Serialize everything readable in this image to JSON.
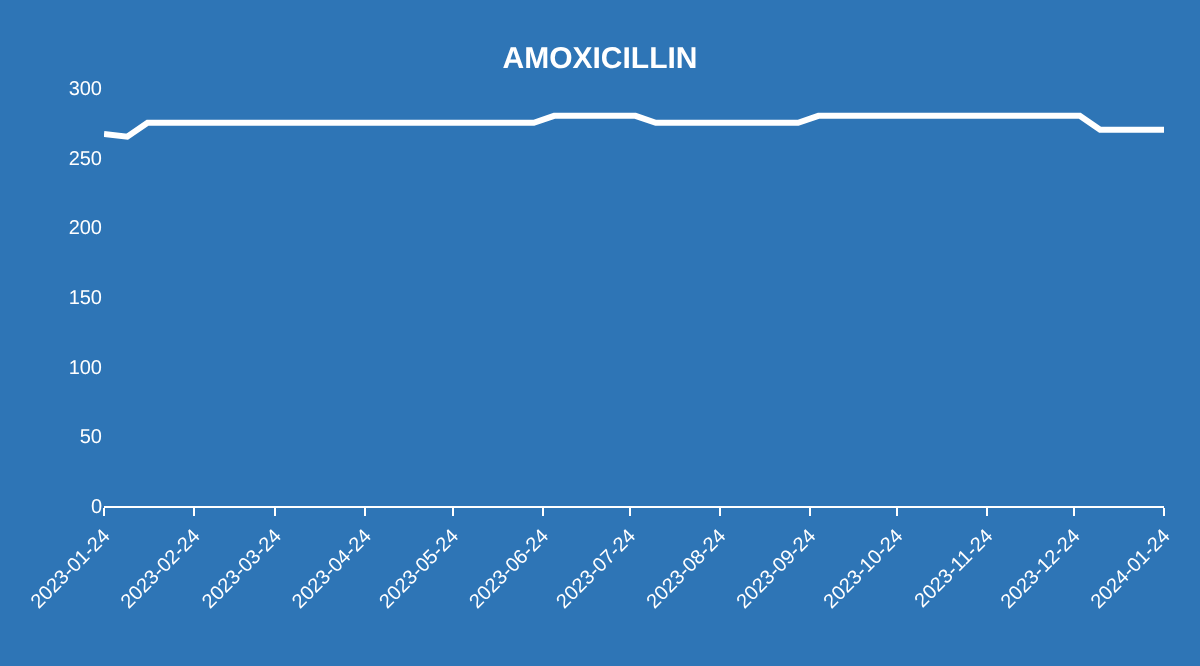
{
  "chart_data": {
    "type": "line",
    "title": "AMOXICILLIN",
    "x": [
      "2023-01-24",
      "2023-02-01",
      "2023-02-08",
      "2023-02-16",
      "2023-02-23",
      "2023-03-02",
      "2023-03-09",
      "2023-03-16",
      "2023-03-29",
      "2023-04-05",
      "2023-04-14",
      "2023-04-20",
      "2023-04-26",
      "2023-05-10",
      "2023-05-17",
      "2023-05-24",
      "2023-05-31",
      "2023-06-07",
      "2023-06-14",
      "2023-06-21",
      "2023-06-28",
      "2023-07-05",
      "2023-07-12",
      "2023-07-19",
      "2023-07-26",
      "2023-08-02",
      "2023-08-09",
      "2023-08-16",
      "2023-08-23",
      "2023-08-30",
      "2023-09-06",
      "2023-09-13",
      "2023-09-20",
      "2023-09-27",
      "2023-10-10",
      "2023-10-17",
      "2023-10-24",
      "2023-10-31",
      "2023-11-07",
      "2023-11-14",
      "2023-11-21",
      "2023-11-28",
      "2023-12-05",
      "2023-12-12",
      "2023-12-19",
      "2023-12-26",
      "2024-01-02",
      "2024-01-09",
      "2024-01-16",
      "2024-01-24"
    ],
    "series": [
      {
        "color": "#ffffff",
        "values": [
          267,
          265,
          275,
          275,
          275,
          275,
          275,
          275,
          275,
          275,
          275,
          275,
          275,
          275,
          275,
          275,
          275,
          275,
          275,
          275,
          280,
          280,
          280,
          280,
          280,
          275,
          275,
          275,
          275,
          275,
          275,
          275,
          275,
          280,
          280,
          280,
          280,
          280,
          280,
          280,
          280,
          280,
          280,
          280,
          280,
          280,
          270,
          270,
          270,
          270
        ]
      }
    ],
    "xlim": [
      "2023-01-24",
      "2024-01-24"
    ],
    "xticks": [
      "2023-01-24",
      "2023-02-24",
      "2023-03-24",
      "2023-04-24",
      "2023-05-24",
      "2023-06-24",
      "2023-07-24",
      "2023-08-24",
      "2023-09-24",
      "2023-10-24",
      "2023-11-24",
      "2023-12-24",
      "2024-01-24"
    ],
    "ylim": [
      0,
      300
    ],
    "yticks": [
      0,
      50,
      100,
      150,
      200,
      250,
      300
    ],
    "grid": false,
    "marker": "none",
    "line_style": "solid"
  }
}
